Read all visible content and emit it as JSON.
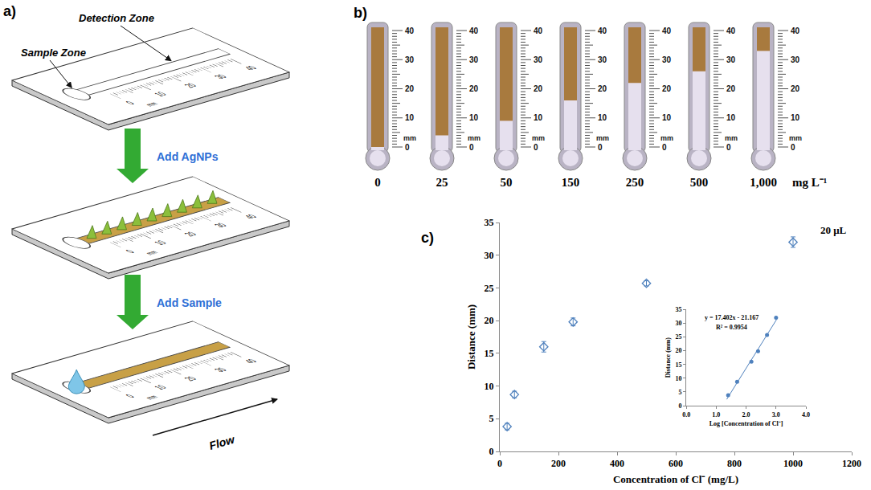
{
  "panel_a": {
    "letter": "a)",
    "detection_label": "Detection Zone",
    "sample_label": "Sample Zone",
    "steps": [
      "Add AgNPs",
      "Add Sample"
    ],
    "flow_label": "Flow",
    "ruler_ticks": [
      0,
      10,
      20,
      30,
      40
    ],
    "ruler_unit": "mm"
  },
  "panel_b": {
    "letter": "b)",
    "concentrations": [
      0,
      25,
      50,
      150,
      250,
      500,
      {
        "value": 1000,
        "label": "1,000"
      }
    ],
    "distances": [
      0,
      4,
      9,
      16,
      22,
      26,
      33
    ],
    "unit": "mg L⁻¹",
    "scale_ticks": [
      0,
      10,
      20,
      30,
      40
    ],
    "scale_unit": "mm"
  },
  "panel_c": {
    "letter": "c)"
  },
  "chart_data": [
    {
      "type": "scatter",
      "title": "20 μL",
      "x_label": "Concentration of Cl⁻ (mg/L)",
      "y_label": "Distance (mm)",
      "x": [
        25,
        50,
        150,
        250,
        500,
        1000
      ],
      "values": [
        3.8,
        8.7,
        16,
        19.8,
        25.7,
        32
      ],
      "errors": [
        0.5,
        0.5,
        0.8,
        0.6,
        0.4,
        0.8
      ],
      "color": "#4f81bd",
      "marker": "diamond-open",
      "xlim": [
        0,
        1200
      ],
      "xticks": [
        0,
        200,
        400,
        600,
        800,
        1000,
        1200
      ],
      "ylim": [
        0,
        35
      ],
      "yticks": [
        0,
        5,
        10,
        15,
        20,
        25,
        30,
        35
      ]
    },
    {
      "type": "scatter",
      "x_label": "Log [Concentration of Cl⁻]",
      "y_label": "Distance (mm)",
      "x": [
        1.398,
        1.699,
        2.176,
        2.398,
        2.699,
        3.0
      ],
      "values": [
        3.8,
        8.7,
        16,
        19.8,
        25.7,
        32
      ],
      "color": "#4f81bd",
      "marker": "circle",
      "trendline": {
        "x": [
          1.35,
          3.02
        ],
        "values": [
          2.3,
          31.4
        ]
      },
      "annotations": [
        "y = 17.402x - 21.167",
        "R² = 0.9954"
      ],
      "xlim": [
        0,
        4
      ],
      "xticks": [
        {
          "value": 0,
          "label": "0.0"
        },
        {
          "value": 1,
          "label": "1.0"
        },
        {
          "value": 2,
          "label": "2.0"
        },
        {
          "value": 3,
          "label": "3.0"
        },
        {
          "value": 4,
          "label": "4.0"
        }
      ],
      "ylim": [
        0,
        35
      ],
      "yticks": [
        0,
        5,
        10,
        15,
        20,
        25,
        30,
        35
      ]
    }
  ]
}
